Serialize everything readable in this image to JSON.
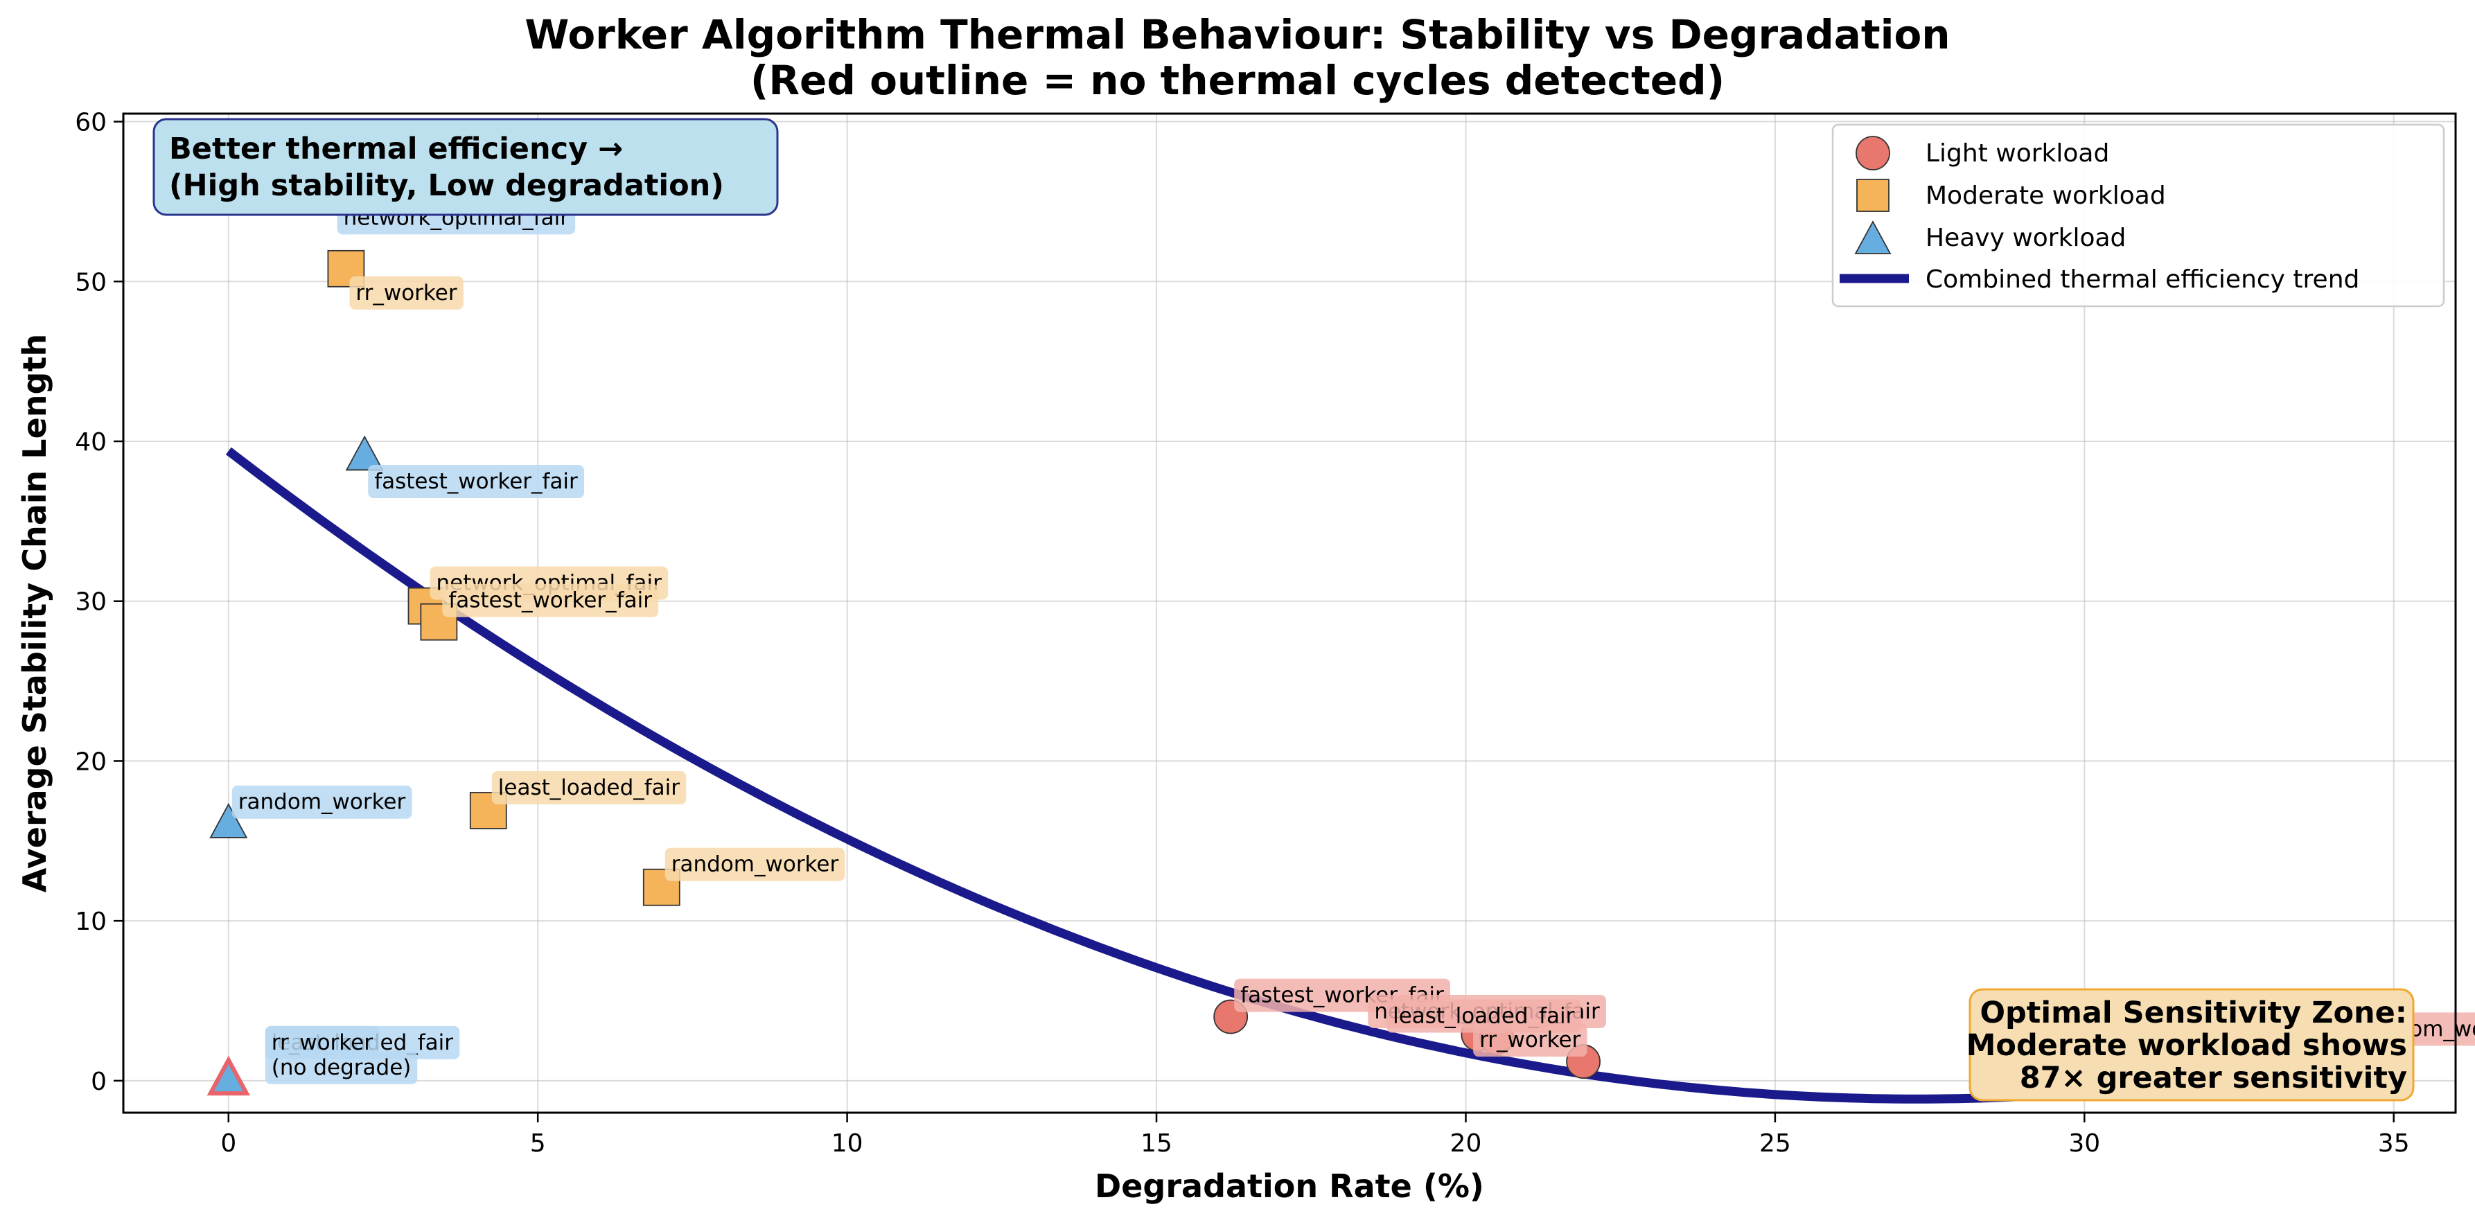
{
  "chart_data": {
    "type": "scatter",
    "title_lines": [
      "Worker Algorithm Thermal Behaviour: Stability vs Degradation",
      "(Red outline = no thermal cycles detected)"
    ],
    "xlabel": "Degradation Rate (%)",
    "ylabel": "Average Stability Chain Length",
    "xlim": [
      -1.7,
      36.0
    ],
    "ylim": [
      -2,
      60.5
    ],
    "xticks": [
      0,
      5,
      10,
      15,
      20,
      25,
      30,
      35
    ],
    "yticks": [
      0,
      10,
      20,
      30,
      40,
      50,
      60
    ],
    "grid": true,
    "legend_position": "top-right",
    "series": [
      {
        "name": "Light workload",
        "marker": "circle",
        "color": "#e8776d",
        "label_bg": "#f2b0aa",
        "points": [
          {
            "x": 16.2,
            "y": 4.0,
            "label": "fastest_worker_fair",
            "dx": 14,
            "dy": -32
          },
          {
            "x": 20.2,
            "y": 2.9,
            "label": "network_optimal_fair",
            "dx": -150,
            "dy": -34
          },
          {
            "x": 20.5,
            "y": 2.7,
            "label": "least_loaded_fair",
            "dx": -150,
            "dy": -32
          },
          {
            "x": 21.9,
            "y": 1.2,
            "label": "rr_worker",
            "dx": -150,
            "dy": -32
          },
          {
            "x": 34.3,
            "y": 1.8,
            "label": "random_worker",
            "dx": 14,
            "dy": -34
          }
        ]
      },
      {
        "name": "Moderate workload",
        "marker": "square",
        "color": "#f5b35a",
        "label_bg": "#f8d9aa",
        "points": [
          {
            "x": 1.9,
            "y": 50.8,
            "label": "rr_worker",
            "dx": 14,
            "dy": 34
          },
          {
            "x": 3.2,
            "y": 29.7,
            "label": "network_optimal_fair",
            "dx": 14,
            "dy": -34
          },
          {
            "x": 3.4,
            "y": 28.7,
            "label": "fastest_worker_fair",
            "dx": 14,
            "dy": -32
          },
          {
            "x": 4.2,
            "y": 16.9,
            "label": "least_loaded_fair",
            "dx": 14,
            "dy": -34
          },
          {
            "x": 7.0,
            "y": 12.1,
            "label": "random_worker",
            "dx": 14,
            "dy": -34
          }
        ]
      },
      {
        "name": "Heavy workload",
        "marker": "triangle",
        "color": "#66ade0",
        "label_bg": "#b7d8f2",
        "points": [
          {
            "x": 1.7,
            "y": 55.5,
            "label": "network_optimal_fair",
            "dx": 14,
            "dy": 34
          },
          {
            "x": 2.2,
            "y": 39.0,
            "label": "fastest_worker_fair",
            "dx": 14,
            "dy": 34
          },
          {
            "x": 0.0,
            "y": 16.0,
            "label": "random_worker",
            "dx": 14,
            "dy": -34
          },
          {
            "x": 0.0,
            "y": 0.0,
            "label": "least_loaded_fair",
            "dx": 62,
            "dy": -56,
            "no_cycles": true
          },
          {
            "x": 0.0,
            "y": 0.0,
            "label": "rr_worker",
            "dx": 62,
            "dy": -56,
            "no_cycles": true
          },
          {
            "x": 0.0,
            "y": 0.0,
            "label": "(no degrade)",
            "dx": 62,
            "dy": -20,
            "no_cycles": true,
            "label_only": true
          }
        ]
      }
    ],
    "trend": {
      "name": "Combined thermal efficiency trend",
      "color": "#1a1a8c",
      "type": "quadratic",
      "coefficients": [
        0.0545,
        -2.973,
        39.4
      ],
      "x_range": [
        0,
        34.3
      ]
    },
    "annotations": [
      {
        "lines": [
          "Better thermal efficiency →",
          "(High stability, Low degradation)"
        ],
        "position": "top-left",
        "bg": "#bde0ee",
        "border": "#2b3590"
      },
      {
        "lines": [
          "Optimal Sensitivity Zone:",
          "Moderate workload shows",
          "87× greater sensitivity"
        ],
        "position": "bottom-right",
        "bg": "#f6ddb2",
        "border": "#f0a830"
      }
    ],
    "no_cycles_outline_color": "#e8646a"
  }
}
